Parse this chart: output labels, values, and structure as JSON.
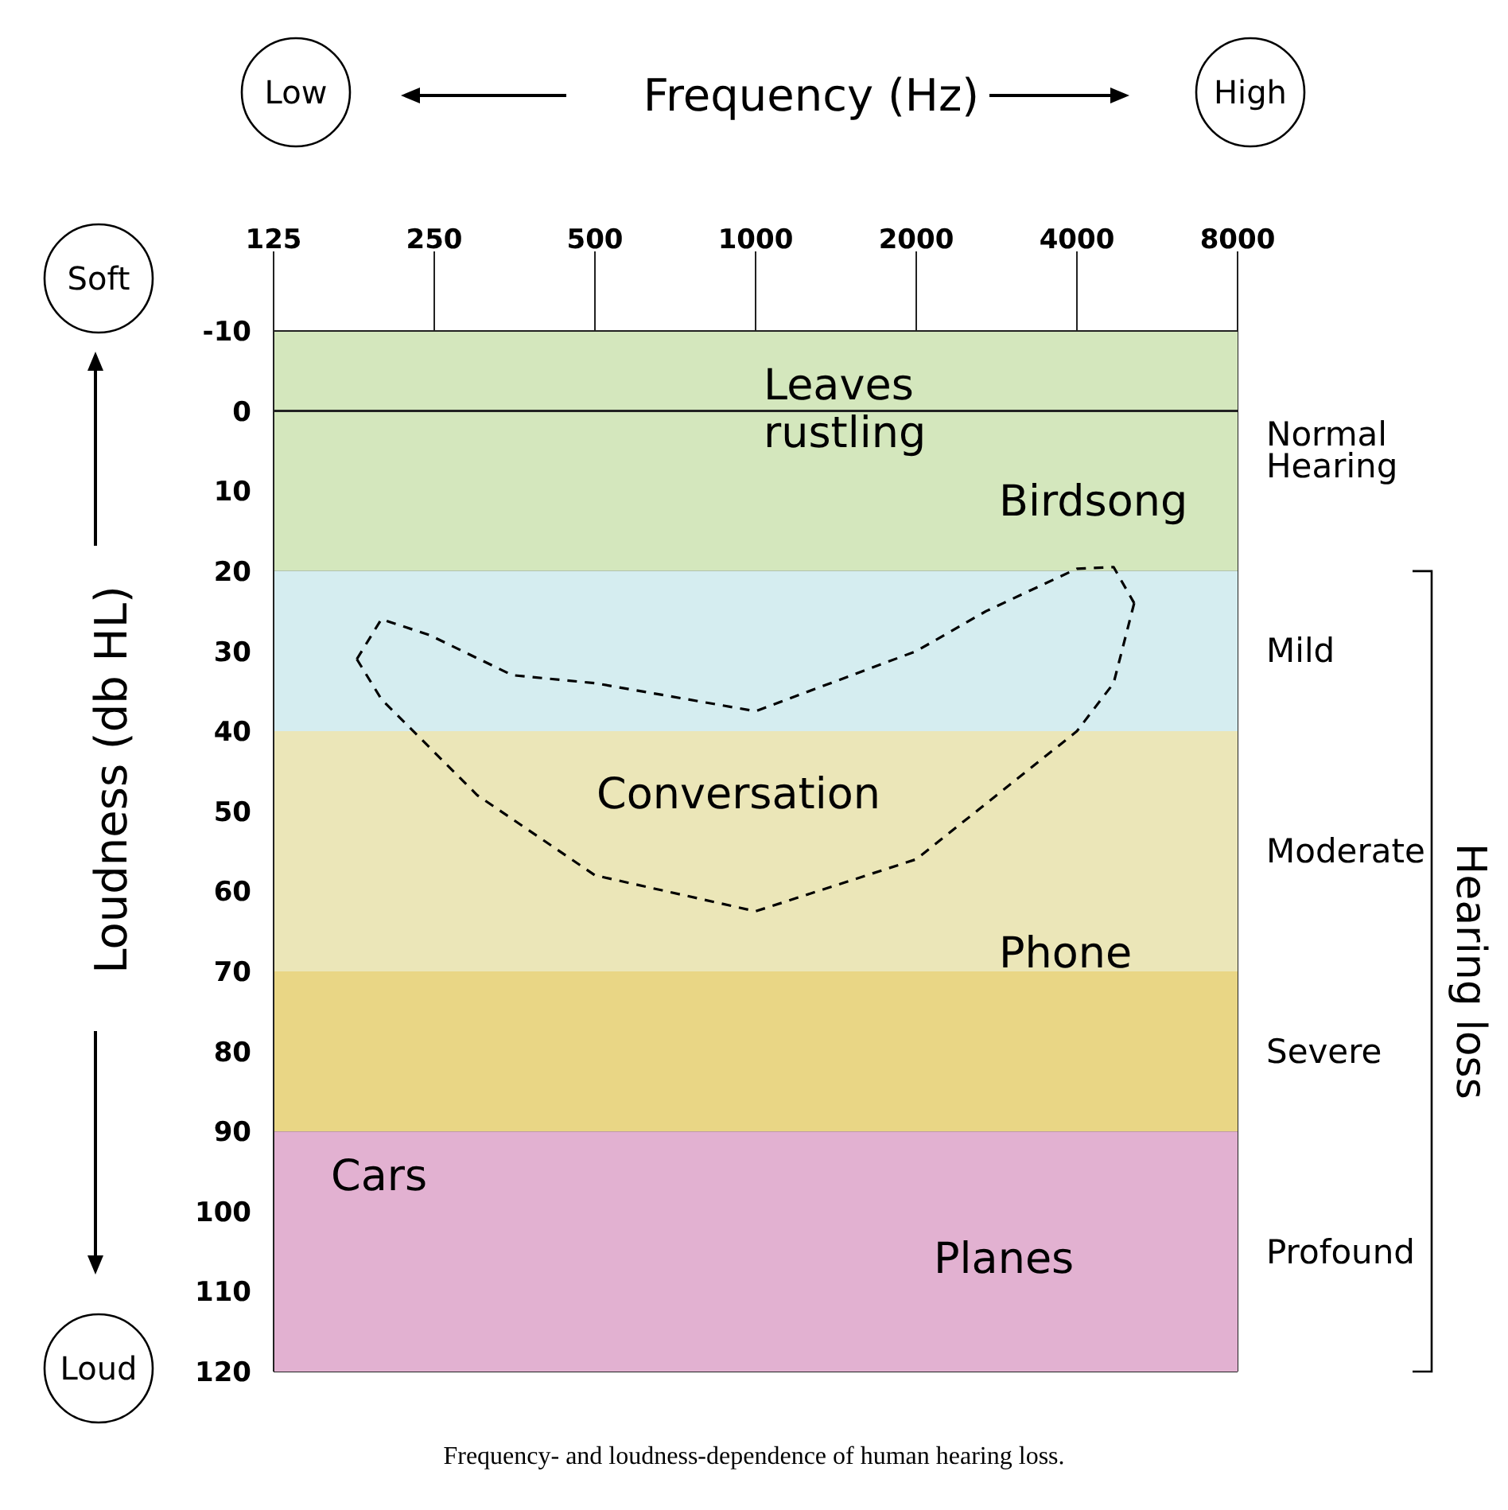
{
  "chart_data": {
    "type": "line",
    "xlabel": "Frequency (Hz)",
    "ylabel": "Loudness (db HL)",
    "log": "x",
    "xlim": [
      125,
      8000
    ],
    "xticks": [
      125,
      250,
      500,
      1000,
      2000,
      4000,
      8000
    ],
    "ylim": [
      120,
      -10
    ],
    "yticks": [
      -10,
      0,
      10,
      20,
      30,
      40,
      50,
      60,
      70,
      80,
      90,
      100,
      110,
      120
    ],
    "grid": true,
    "marker": "none",
    "series": [
      {
        "color": "#000000",
        "line_style": "dashed",
        "x": [
          179,
          199,
          245,
          350,
          500,
          1000,
          2000,
          2704,
          4000,
          4686,
          5121
        ],
        "values": [
          31,
          26,
          28,
          33,
          34,
          37.5,
          30,
          25,
          19.7,
          19.5,
          24
        ]
      },
      {
        "color": "#000000",
        "line_style": "dashed",
        "x": [
          179,
          199,
          301,
          500,
          1000,
          2000,
          4000,
          4686,
          5121
        ],
        "values": [
          31,
          36,
          48,
          58,
          62.5,
          56,
          40,
          34,
          24
        ]
      }
    ],
    "bands": [
      {
        "axis": "y",
        "from": -10,
        "to": 20,
        "label": "Normal Hearing",
        "color": "#d4e7bd"
      },
      {
        "axis": "y",
        "from": 20,
        "to": 40,
        "label": "Mild",
        "color": "#d5edf0"
      },
      {
        "axis": "y",
        "from": 40,
        "to": 70,
        "label": "Moderate",
        "color": "#ebe6b8"
      },
      {
        "axis": "y",
        "from": 70,
        "to": 90,
        "label": "Severe",
        "color": "#e9d685"
      },
      {
        "axis": "y",
        "from": 90,
        "to": 120,
        "label": "Profound",
        "color": "#e2b1d1"
      }
    ],
    "ref_lines": [
      {
        "axis": "y",
        "value": 0,
        "color": "#222222"
      }
    ],
    "annotations": [
      "Low",
      "High",
      "Soft",
      "Loud",
      "Hearing loss",
      "Frequency- and loudness-dependence of human hearing loss.",
      "Leaves rustling",
      "Birdsong",
      "Conversation",
      "Phone",
      "Cars",
      "Planes"
    ]
  }
}
